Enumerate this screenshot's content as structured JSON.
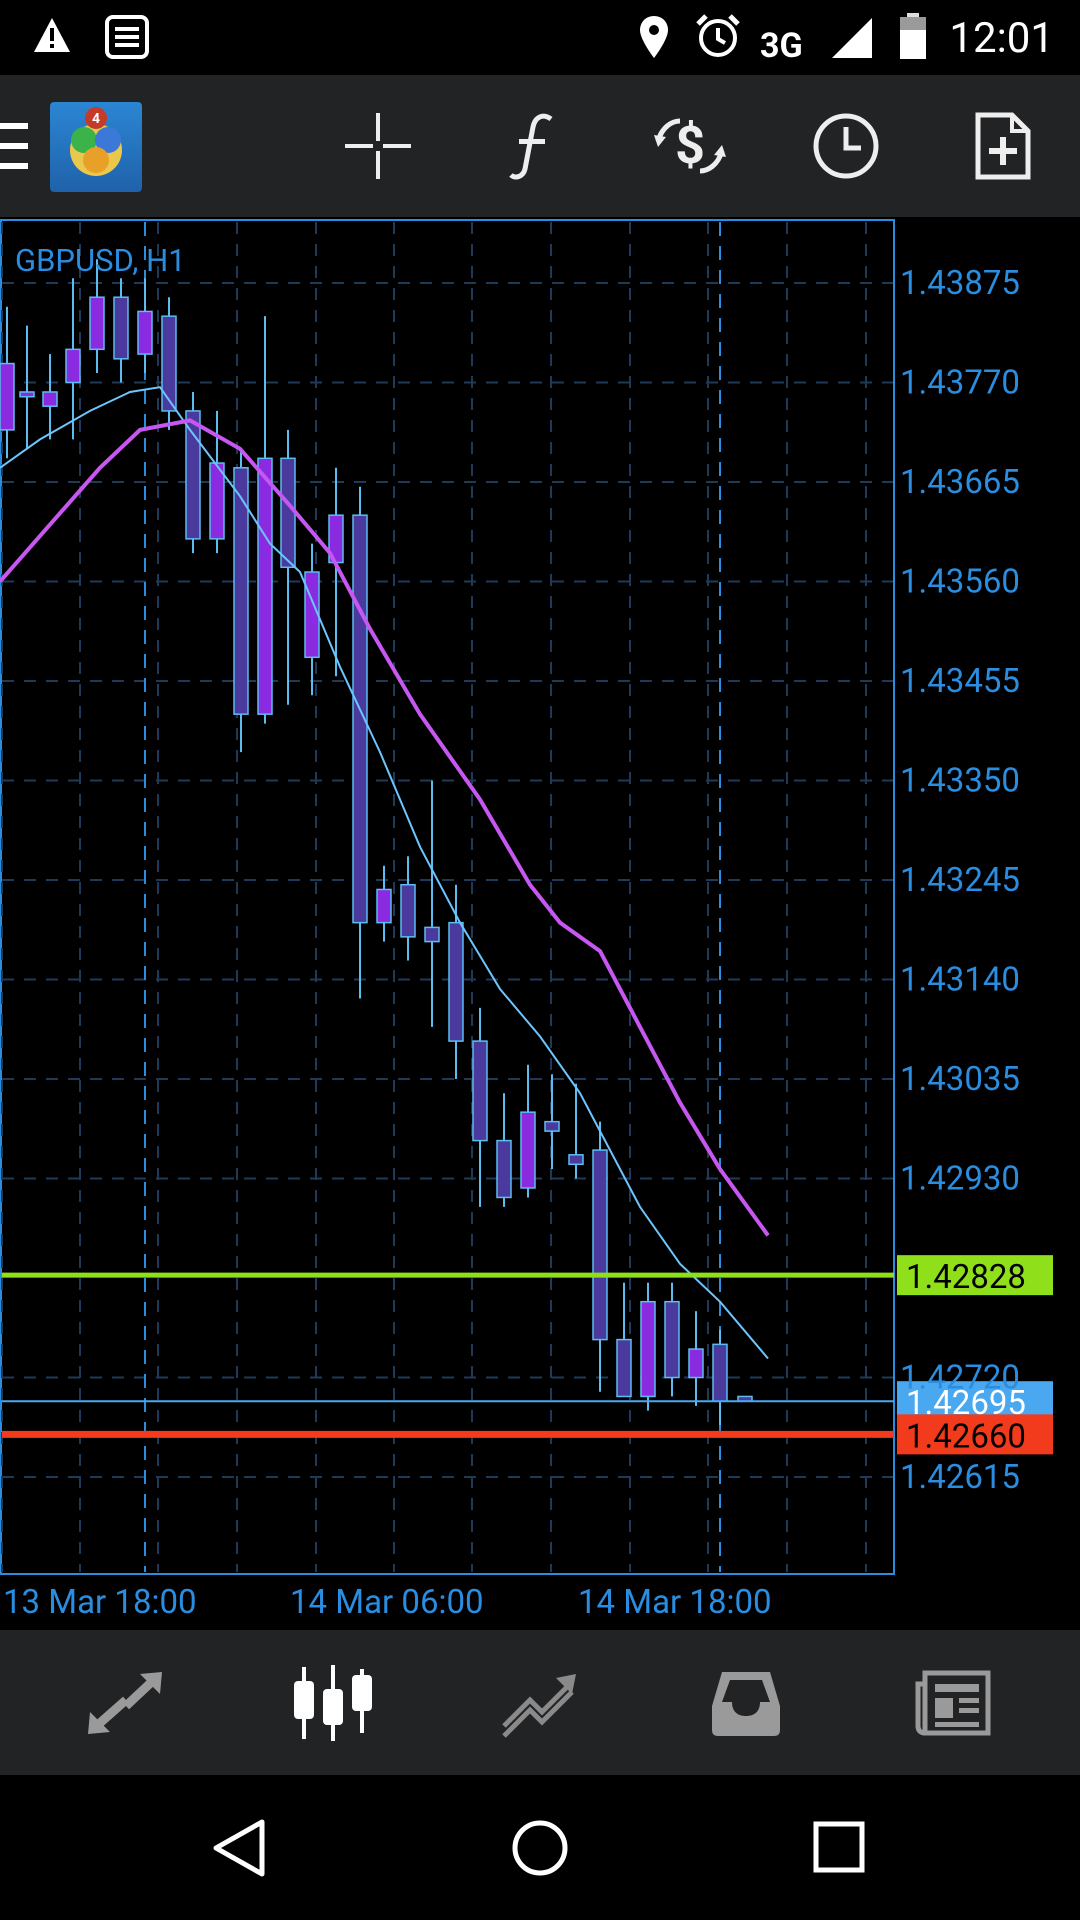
{
  "status_bar": {
    "icons": [
      "warning-icon",
      "notes-icon",
      "location-icon",
      "alarm-icon",
      "signal-icon",
      "battery-icon"
    ],
    "network": "3G",
    "time": "12:01"
  },
  "toolbar": {
    "items": [
      "menu-icon",
      "metatrader-logo",
      "crosshair-icon",
      "indicators-icon",
      "trade-icon",
      "timeframe-icon",
      "new-order-icon"
    ]
  },
  "chart": {
    "symbol_label": "GBPUSD, H1",
    "price_ticks": [
      "1.43875",
      "1.43770",
      "1.43665",
      "1.43560",
      "1.43455",
      "1.43350",
      "1.43245",
      "1.43140",
      "1.43035",
      "1.42930",
      "1.42720",
      "1.42615"
    ],
    "time_labels": [
      "13 Mar 18:00",
      "14 Mar 06:00",
      "14 Mar 18:00"
    ],
    "level_green": "1.42828",
    "level_bid": "1.42695",
    "level_red": "1.42660",
    "colors": {
      "bull_body": "#8a2be2",
      "bear_body": "#4b3a9e",
      "wick": "#5bbdf0",
      "ma_fast": "#6cc5ff",
      "ma_slow": "#c657f0",
      "green_level": "#8fe01a",
      "red_level": "#f23a1c",
      "bid_level": "#4aa8f0",
      "axis_text": "#2a8de0"
    }
  },
  "bottom_nav": {
    "items": [
      "quotes-icon",
      "chart-icon",
      "trade-icon",
      "history-icon",
      "news-icon"
    ],
    "active": "chart-icon"
  },
  "system_nav": {
    "items": [
      "back-icon",
      "home-icon",
      "recents-icon"
    ]
  }
}
